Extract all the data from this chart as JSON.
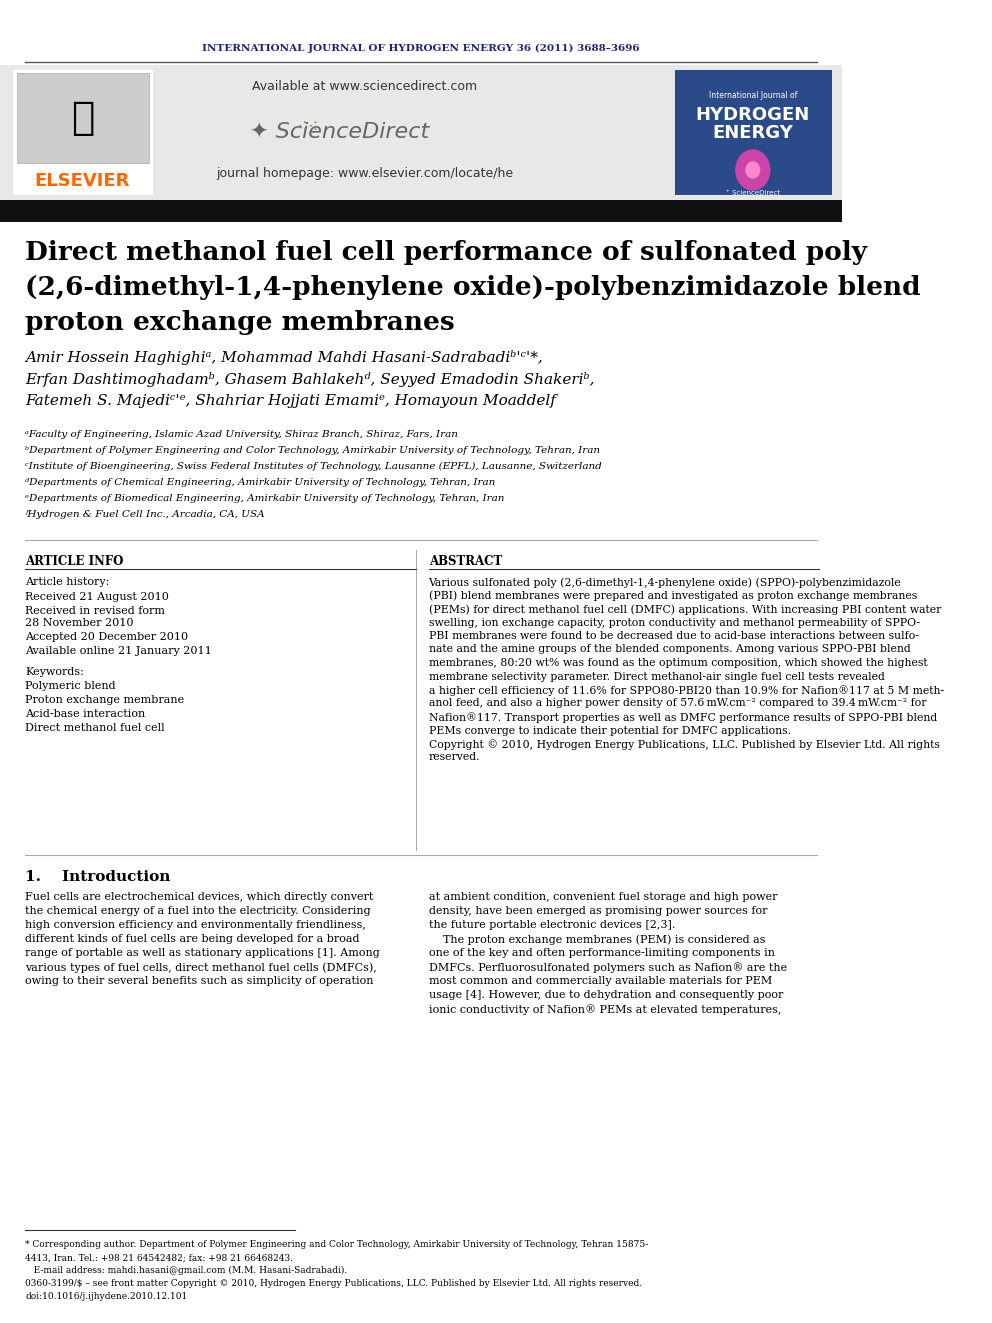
{
  "journal_header": "INTERNATIONAL JOURNAL OF HYDROGEN ENERGY 36 (2011) 3688–3696",
  "journal_header_color": "#1a237e",
  "available_text": "Available at www.sciencedirect.com",
  "homepage_text": "journal homepage: www.elsevier.com/locate/he",
  "elsevier_color": "#FF6600",
  "header_bg": "#e8e8e8",
  "title": "Direct methanol fuel cell performance of sulfonated poly\n(2,6-dimethyl-1,4-phenylene oxide)-polybenzimidazole blend\nproton exchange membranes",
  "authors": "Amir Hossein Haghighiᵃ, Mohammad Mahdi Hasani-Sadrabadiᵇʸᶜʹ*,\nErfan Dashtimoghadamᵇ, Ghasem Bahlakehᵈ, Seyyed Emadodin Shakeriᵇ,\nFatemeh S. Majediᶜᵉ, Shahriar Hojjati Emamiᵉ, Homayoun Moaddelᶠ",
  "affiliations": [
    "ᵃFaculty of Engineering, Islamic Azad University, Shiraz Branch, Shiraz, Fars, Iran",
    "ᵇDepartment of Polymer Engineering and Color Technology, Amirkabir University of Technology, Tehran, Iran",
    "ᶜInstitute of Bioengineering, Swiss Federal Institutes of Technology, Lausanne (EPFL), Lausanne, Switzerland",
    "ᵈDepartments of Chemical Engineering, Amirkabir University of Technology, Tehran, Iran",
    "ᵉDepartments of Biomedical Engineering, Amirkabir University of Technology, Tehran, Iran",
    "ᶠHydrogen & Fuel Cell Inc., Arcadia, CA, USA"
  ],
  "article_info_title": "ARTICLE INFO",
  "article_history_title": "Article history:",
  "received1": "Received 21 August 2010",
  "received2": "Received in revised form\n28 November 2010",
  "accepted": "Accepted 20 December 2010",
  "online": "Available online 21 January 2011",
  "keywords_title": "Keywords:",
  "keywords": [
    "Polymeric blend",
    "Proton exchange membrane",
    "Acid-base interaction",
    "Direct methanol fuel cell"
  ],
  "abstract_title": "ABSTRACT",
  "abstract_text": "Various sulfonated poly (2,6-dimethyl-1,4-phenylene oxide) (SPPO)-polybenzimidazole\n(PBI) blend membranes were prepared and investigated as proton exchange membranes\n(PEMs) for direct methanol fuel cell (DMFC) applications. With increasing PBI content water\nswelling, ion exchange capacity, proton conductivity and methanol permeability of SPPO-\nPBI membranes were found to be decreased due to acid-base interactions between sulfo-\nnate and the amine groups of the blended components. Among various SPPO-PBI blend\nmembranes, 80:20 wt% was found as the optimum composition, which showed the highest\nmembrane selectivity parameter. Direct methanol-air single fuel cell tests revealed\na higher cell efficiency of 11.6% for SPPO80-PBI20 than 10.9% for Nafion®117 at 5 M meth-\nanol feed, and also a higher power density of 57.6 mW.cm⁻² compared to 39.4 mW.cm⁻² for\nNafion®117. Transport properties as well as DMFC performance results of SPPO-PBI blend\nPEMs converge to indicate their potential for DMFC applications.\nCopyright © 2010, Hydrogen Energy Publications, LLC. Published by Elsevier Ltd. All rights\nreserved.",
  "intro_title": "1.    Introduction",
  "intro_text1": "Fuel cells are electrochemical devices, which directly convert\nthe chemical energy of a fuel into the electricity. Considering\nhigh conversion efficiency and environmentally friendliness,\ndifferent kinds of fuel cells are being developed for a broad\nrange of portable as well as stationary applications [1]. Among\nvarious types of fuel cells, direct methanol fuel cells (DMFCs),\nowing to their several benefits such as simplicity of operation",
  "intro_text2": "at ambient condition, convenient fuel storage and high power\ndensity, have been emerged as promising power sources for\nthe future portable electronic devices [2,3].\n    The proton exchange membranes (PEM) is considered as\none of the key and often performance-limiting components in\nDMFCs. Perfluorosulfonated polymers such as Nafion® are the\nmost common and commercially available materials for PEM\nusage [4]. However, due to dehydration and consequently poor\nionic conductivity of Nafion® PEMs at elevated temperatures,",
  "footnote": "* Corresponding author. Department of Polymer Engineering and Color Technology, Amirkabir University of Technology, Tehran 15875-\n4413, Iran. Tel.: +98 21 64542482; fax: +98 21 66468243.\n   E-mail address: mahdi.hasani@gmail.com (M.M. Hasani-Sadrabadi).\n0360-3199/$ – see front matter Copyright © 2010, Hydrogen Energy Publications, LLC. Published by Elsevier Ltd. All rights reserved.\ndoi:10.1016/j.ijhydene.2010.12.101",
  "separator_color": "#333333",
  "title_bg": "#111111",
  "text_color": "#000000",
  "scidir_green": "#5a9a3a",
  "journal_cover_bg": "#2a4a8a"
}
